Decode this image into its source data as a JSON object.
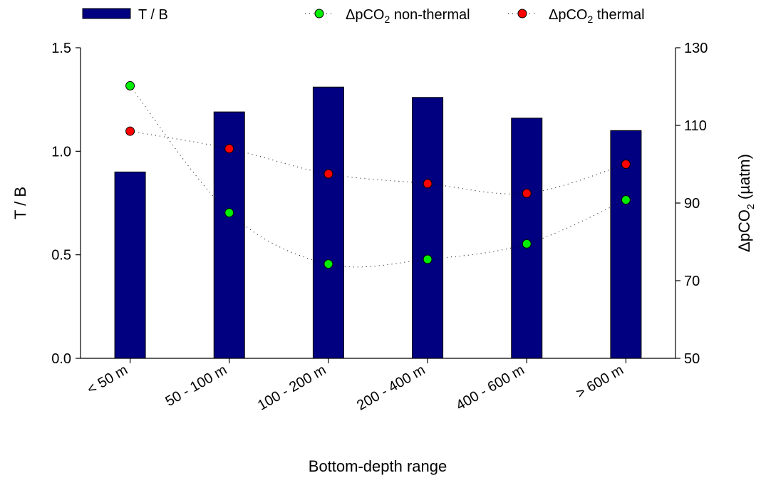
{
  "chart_data": {
    "type": "bar",
    "categories": [
      "< 50 m",
      "50 - 100 m",
      "100 - 200 m",
      "200 - 400 m",
      "400 - 600 m",
      "> 600 m"
    ],
    "xlabel": "Bottom-depth range",
    "ylabel_left": "T / B",
    "ylabel_right_prefix": "ΔpCO",
    "ylabel_right_subscript": "2",
    "ylabel_right_suffix": " (µatm)",
    "ylim_left": [
      0,
      1.5
    ],
    "ylim_right": [
      50,
      130
    ],
    "yticks_left": [
      {
        "value": 0.0,
        "label": "0.0"
      },
      {
        "value": 0.5,
        "label": "0.5"
      },
      {
        "value": 1.0,
        "label": "1.0"
      },
      {
        "value": 1.5,
        "label": "1.5"
      }
    ],
    "yticks_right": [
      {
        "value": 50,
        "label": "50"
      },
      {
        "value": 70,
        "label": "70"
      },
      {
        "value": 90,
        "label": "90"
      },
      {
        "value": 110,
        "label": "110"
      },
      {
        "value": 130,
        "label": "130"
      }
    ],
    "bars": {
      "name": "T / B",
      "axis": "left",
      "color": "#000080",
      "values": [
        0.9,
        1.19,
        1.31,
        1.26,
        1.16,
        1.1
      ]
    },
    "series": [
      {
        "name_prefix": "ΔpCO",
        "name_subscript": "2",
        "name_suffix": " non-thermal",
        "axis": "right",
        "style": "dotted-line-with-markers",
        "color": "#00ee00",
        "values": [
          120.2,
          87.5,
          74.3,
          75.5,
          79.5,
          90.8
        ]
      },
      {
        "name_prefix": "ΔpCO",
        "name_subscript": "2",
        "name_suffix": " thermal",
        "axis": "right",
        "style": "dotted-line-with-markers",
        "color": "#ff0000",
        "values": [
          108.5,
          104.0,
          97.5,
          95.0,
          92.5,
          100.0
        ]
      }
    ],
    "legend_placement": "top",
    "grid": false
  }
}
